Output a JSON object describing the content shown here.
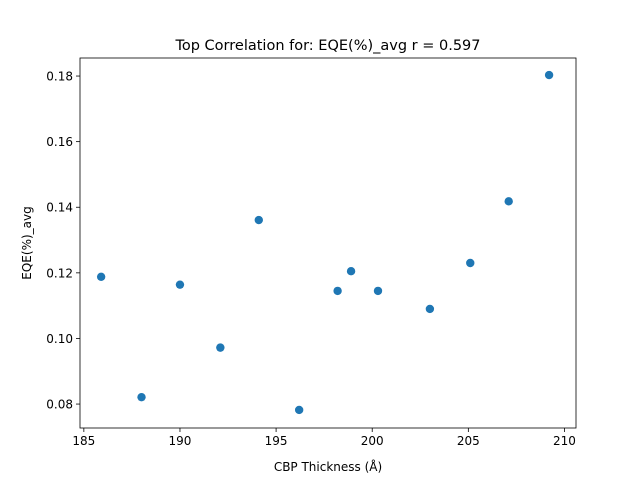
{
  "chart_data": {
    "type": "scatter",
    "title": "Top Correlation for: EQE(%)_avg r = 0.597",
    "xlabel": "CBP Thickness (Å)",
    "ylabel": "EQE(%)_avg",
    "xlim": [
      184.8,
      210.6
    ],
    "ylim": [
      0.0727,
      0.1855
    ],
    "xticks": [
      185,
      190,
      195,
      200,
      205,
      210
    ],
    "yticks": [
      0.08,
      0.1,
      0.12,
      0.14,
      0.16,
      0.18
    ],
    "ytick_labels": [
      "0.08",
      "0.10",
      "0.12",
      "0.14",
      "0.16",
      "0.18"
    ],
    "grid": false,
    "marker_color": "#1f77b4",
    "points": [
      {
        "x": 185.9,
        "y": 0.1188
      },
      {
        "x": 188.0,
        "y": 0.0821
      },
      {
        "x": 190.0,
        "y": 0.1164
      },
      {
        "x": 192.1,
        "y": 0.0972
      },
      {
        "x": 194.1,
        "y": 0.1361
      },
      {
        "x": 196.2,
        "y": 0.0782
      },
      {
        "x": 198.2,
        "y": 0.1145
      },
      {
        "x": 198.9,
        "y": 0.1205
      },
      {
        "x": 200.3,
        "y": 0.1145
      },
      {
        "x": 203.0,
        "y": 0.109
      },
      {
        "x": 205.1,
        "y": 0.123
      },
      {
        "x": 207.1,
        "y": 0.1418
      },
      {
        "x": 209.2,
        "y": 0.1803
      }
    ]
  }
}
